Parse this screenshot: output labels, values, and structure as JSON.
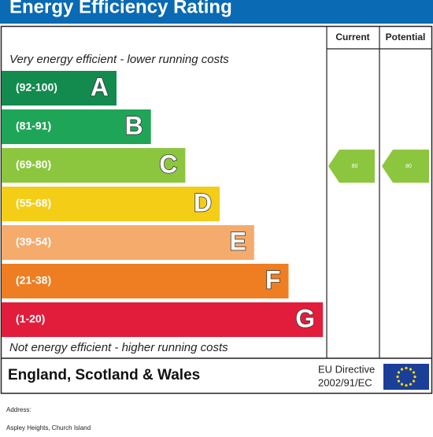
{
  "header": {
    "title": "Energy Efficiency Rating"
  },
  "columns": {
    "current": "Current",
    "potential": "Potential"
  },
  "top_note": "Very energy efficient - lower running costs",
  "bottom_note": "Not energy efficient - higher running costs",
  "bands": [
    {
      "range": "(92-100)",
      "letter": "A",
      "color": "#138a4e"
    },
    {
      "range": "(81-91)",
      "letter": "B",
      "color": "#1fa558"
    },
    {
      "range": "(69-80)",
      "letter": "C",
      "color": "#8cc63f"
    },
    {
      "range": "(55-68)",
      "letter": "D",
      "color": "#f4cd17"
    },
    {
      "range": "(39-54)",
      "letter": "E",
      "color": "#f4ab6c"
    },
    {
      "range": "(21-38)",
      "letter": "F",
      "color": "#ef7e22"
    },
    {
      "range": "(1-20)",
      "letter": "G",
      "color": "#e21d3b"
    }
  ],
  "current": {
    "value": 80,
    "band": "C"
  },
  "potential": {
    "value": 80,
    "band": "C"
  },
  "footer": {
    "region": "England, Scotland & Wales",
    "directive_line1": "EU Directive",
    "directive_line2": "2002/91/EC"
  },
  "address": {
    "label": "Address:",
    "text": "Aspley Heights, Church Island"
  }
}
